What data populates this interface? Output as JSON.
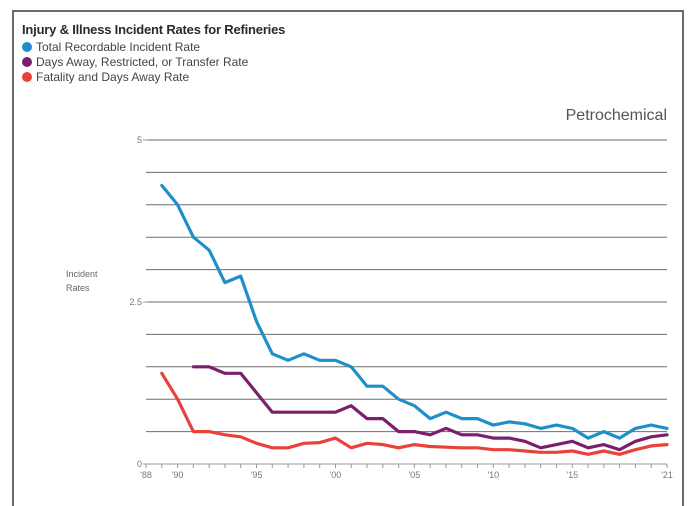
{
  "chart_data": {
    "type": "line",
    "title": "Injury & Illness Incident Rates for Refineries",
    "subtitle": "Petrochemical",
    "ylabel_line1": "Incident",
    "ylabel_line2": "Rates",
    "ylim": [
      0,
      5
    ],
    "yticks": [
      {
        "value": 0,
        "label": "0"
      },
      {
        "value": 2.5,
        "label": "2.5"
      },
      {
        "value": 5,
        "label": "5"
      }
    ],
    "xlim": [
      1988,
      2021
    ],
    "xticks": [
      {
        "value": 1988,
        "label": "'88"
      },
      {
        "value": 1990,
        "label": "'90"
      },
      {
        "value": 1995,
        "label": "'95"
      },
      {
        "value": 2000,
        "label": "'00"
      },
      {
        "value": 2005,
        "label": "'05"
      },
      {
        "value": 2010,
        "label": "'10"
      },
      {
        "value": 2015,
        "label": "'15"
      },
      {
        "value": 2021,
        "label": "'21"
      }
    ],
    "grid": true,
    "series": [
      {
        "name": "Total Recordable Incident Rate",
        "color": "#1f8fc9",
        "x": [
          1989,
          1990,
          1991,
          1992,
          1993,
          1994,
          1995,
          1996,
          1997,
          1998,
          1999,
          2000,
          2001,
          2002,
          2003,
          2004,
          2005,
          2006,
          2007,
          2008,
          2009,
          2010,
          2011,
          2012,
          2013,
          2014,
          2015,
          2016,
          2017,
          2018,
          2019,
          2020,
          2021
        ],
        "values": [
          4.3,
          4.0,
          3.5,
          3.3,
          2.8,
          2.9,
          2.2,
          1.7,
          1.6,
          1.7,
          1.6,
          1.6,
          1.5,
          1.2,
          1.2,
          1.0,
          0.9,
          0.7,
          0.8,
          0.7,
          0.7,
          0.6,
          0.65,
          0.62,
          0.55,
          0.6,
          0.55,
          0.4,
          0.5,
          0.4,
          0.55,
          0.6,
          0.55
        ]
      },
      {
        "name": "Days Away, Restricted, or Transfer Rate",
        "color": "#7a1f6e",
        "x": [
          1991,
          1992,
          1993,
          1994,
          1995,
          1996,
          1997,
          1998,
          1999,
          2000,
          2001,
          2002,
          2003,
          2004,
          2005,
          2006,
          2007,
          2008,
          2009,
          2010,
          2011,
          2012,
          2013,
          2014,
          2015,
          2016,
          2017,
          2018,
          2019,
          2020,
          2021
        ],
        "values": [
          1.5,
          1.5,
          1.4,
          1.4,
          1.1,
          0.8,
          0.8,
          0.8,
          0.8,
          0.8,
          0.9,
          0.7,
          0.7,
          0.5,
          0.5,
          0.45,
          0.55,
          0.45,
          0.45,
          0.4,
          0.4,
          0.35,
          0.25,
          0.3,
          0.35,
          0.25,
          0.3,
          0.22,
          0.35,
          0.42,
          0.45
        ]
      },
      {
        "name": "Fatality and Days Away Rate",
        "color": "#e8423a",
        "x": [
          1989,
          1990,
          1991,
          1992,
          1993,
          1994,
          1995,
          1996,
          1997,
          1998,
          1999,
          2000,
          2001,
          2002,
          2003,
          2004,
          2005,
          2006,
          2007,
          2008,
          2009,
          2010,
          2011,
          2012,
          2013,
          2014,
          2015,
          2016,
          2017,
          2018,
          2019,
          2020,
          2021
        ],
        "values": [
          1.4,
          1.0,
          0.5,
          0.5,
          0.45,
          0.42,
          0.32,
          0.25,
          0.25,
          0.32,
          0.33,
          0.4,
          0.25,
          0.32,
          0.3,
          0.25,
          0.3,
          0.27,
          0.26,
          0.25,
          0.25,
          0.22,
          0.22,
          0.2,
          0.18,
          0.18,
          0.2,
          0.15,
          0.2,
          0.15,
          0.22,
          0.28,
          0.3
        ]
      }
    ]
  }
}
